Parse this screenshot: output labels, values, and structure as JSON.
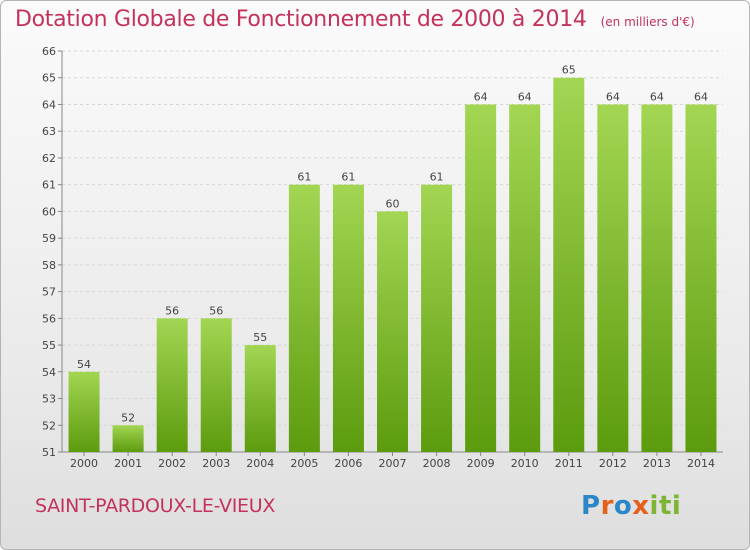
{
  "header": {
    "title": "Dotation Globale de Fonctionnement de 2000 à 2014",
    "unit": "(en milliers d'€)"
  },
  "footer": {
    "commune": "SAINT-PARDOUX-LE-VIEUX",
    "logo_text": "Proxiti"
  },
  "colors": {
    "bar_top": "#9fd24f",
    "bar_bottom": "#5f9e10",
    "title": "#c4325a",
    "grid": "#d8d8d8"
  },
  "chart_data": {
    "type": "bar",
    "title": "Dotation Globale de Fonctionnement de 2000 à 2014",
    "subtitle": "(en milliers d'€)",
    "xlabel": "",
    "ylabel": "",
    "categories": [
      "2000",
      "2001",
      "2002",
      "2003",
      "2004",
      "2005",
      "2006",
      "2007",
      "2008",
      "2009",
      "2010",
      "2011",
      "2012",
      "2013",
      "2014"
    ],
    "values": [
      54,
      52,
      56,
      56,
      55,
      61,
      61,
      60,
      61,
      64,
      64,
      65,
      64,
      64,
      64
    ],
    "ylim": [
      51,
      66
    ],
    "yticks": [
      51,
      52,
      53,
      54,
      55,
      56,
      57,
      58,
      59,
      60,
      61,
      62,
      63,
      64,
      65,
      66
    ],
    "grid": true,
    "legend": "none",
    "data_labels": true
  }
}
